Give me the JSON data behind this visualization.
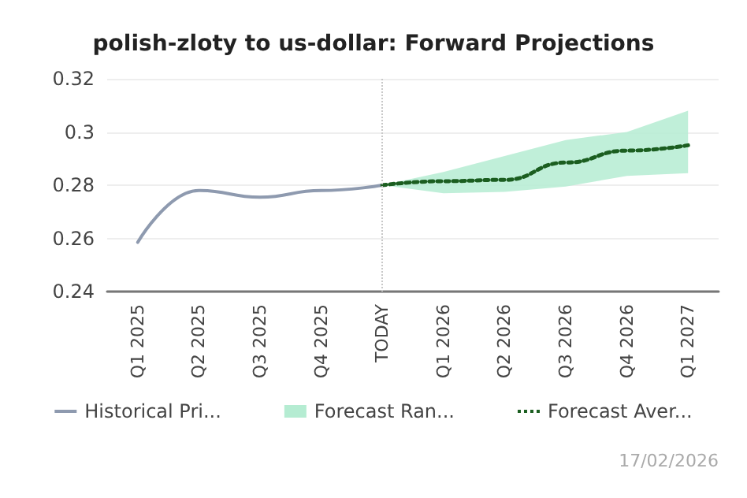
{
  "chart_data": {
    "type": "line",
    "title": "polish-zloty to us-dollar: Forward Projections",
    "categories": [
      "Q1 2025",
      "Q2 2025",
      "Q3 2025",
      "Q4 2025",
      "TODAY",
      "Q1 2026",
      "Q2 2026",
      "Q3 2026",
      "Q4 2026",
      "Q1 2027"
    ],
    "series": [
      {
        "name": "Historical Pri...",
        "color": "#8e9aaf",
        "values": [
          0.2585,
          0.278,
          0.2755,
          0.278,
          0.28,
          null,
          null,
          null,
          null,
          null
        ]
      },
      {
        "name": "Forecast Ran...",
        "type": "area",
        "color": "#b5ecd2",
        "values": [
          null,
          null,
          null,
          null,
          null,
          null,
          null,
          null,
          null,
          null
        ]
      },
      {
        "name": "Forecast Aver...",
        "color": "#1b5e20",
        "line_style": "dotted",
        "values": [
          null,
          null,
          null,
          null,
          0.28,
          0.2815,
          0.282,
          0.2885,
          0.293,
          0.295
        ],
        "lower": [
          null,
          null,
          null,
          null,
          0.28,
          0.277,
          0.2775,
          0.2795,
          0.2835,
          0.2845
        ],
        "upper": [
          null,
          null,
          null,
          null,
          0.28,
          0.285,
          0.291,
          0.297,
          0.3,
          0.308
        ]
      }
    ],
    "ylim": [
      0.24,
      0.32
    ],
    "yticks": [
      0.24,
      0.26,
      0.28,
      0.3,
      0.32
    ],
    "grid": "y",
    "legend": "bottom",
    "ref_lines": [
      {
        "axis": "x",
        "value": "TODAY",
        "label": null,
        "color": "#c8c8c8",
        "line_style": "dotted"
      }
    ],
    "annotations": [
      "17/02/2026"
    ]
  }
}
